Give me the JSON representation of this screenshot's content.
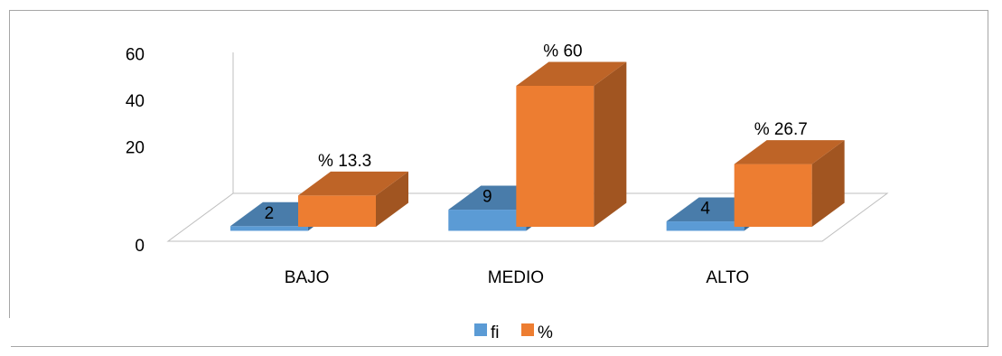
{
  "chart_data": {
    "type": "bar",
    "title": "",
    "xlabel": "",
    "ylabel": "",
    "categories": [
      "BAJO",
      "MEDIO",
      "ALTO"
    ],
    "series": [
      {
        "name": "fi",
        "values": [
          2,
          9,
          4
        ],
        "labels": [
          "2",
          "9",
          "4"
        ],
        "color": "#5b9bd5"
      },
      {
        "name": "%",
        "values": [
          13.3,
          60,
          26.7
        ],
        "labels": [
          "% 13.3",
          "% 60",
          "% 26.7"
        ],
        "color": "#ed7d31"
      }
    ],
    "ylim": [
      0,
      60
    ],
    "yticks": [
      "0",
      "20",
      "40",
      "60"
    ],
    "legend_position": "bottom",
    "grid": false,
    "style": "3d-clustered-column"
  }
}
